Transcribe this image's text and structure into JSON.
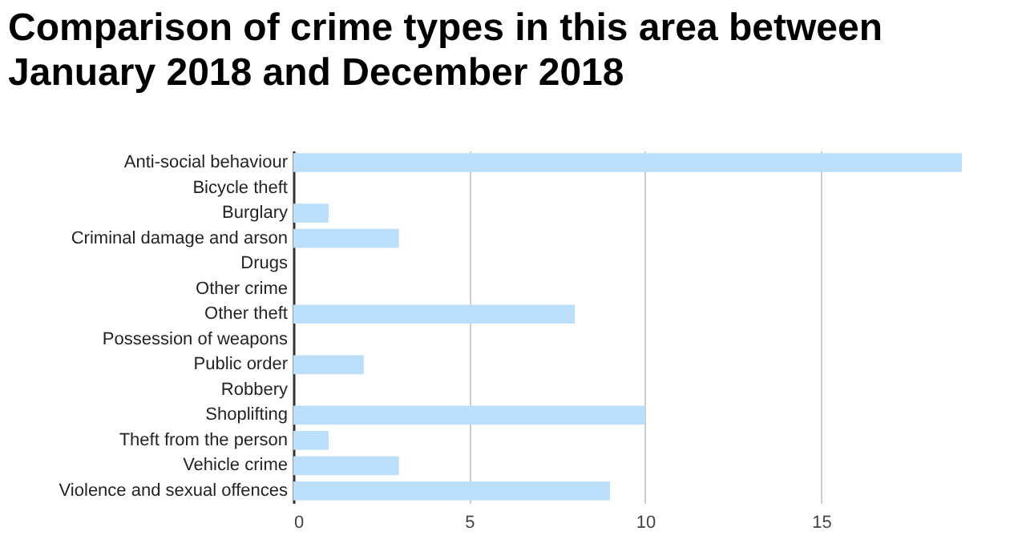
{
  "chart_data": {
    "type": "bar",
    "orientation": "horizontal",
    "title": "Comparison of crime types in this area between January 2018 and December 2018",
    "categories": [
      "Anti-social behaviour",
      "Bicycle theft",
      "Burglary",
      "Criminal damage and arson",
      "Drugs",
      "Other crime",
      "Other theft",
      "Possession of weapons",
      "Public order",
      "Robbery",
      "Shoplifting",
      "Theft from the person",
      "Vehicle crime",
      "Violence and sexual offences"
    ],
    "values": [
      19,
      0,
      1,
      3,
      0,
      0,
      8,
      0,
      2,
      0,
      10,
      1,
      3,
      9
    ],
    "color": "#bbdefb",
    "xlim": [
      0,
      19
    ],
    "xticks": [
      0,
      5,
      10,
      15
    ],
    "grid": true
  }
}
